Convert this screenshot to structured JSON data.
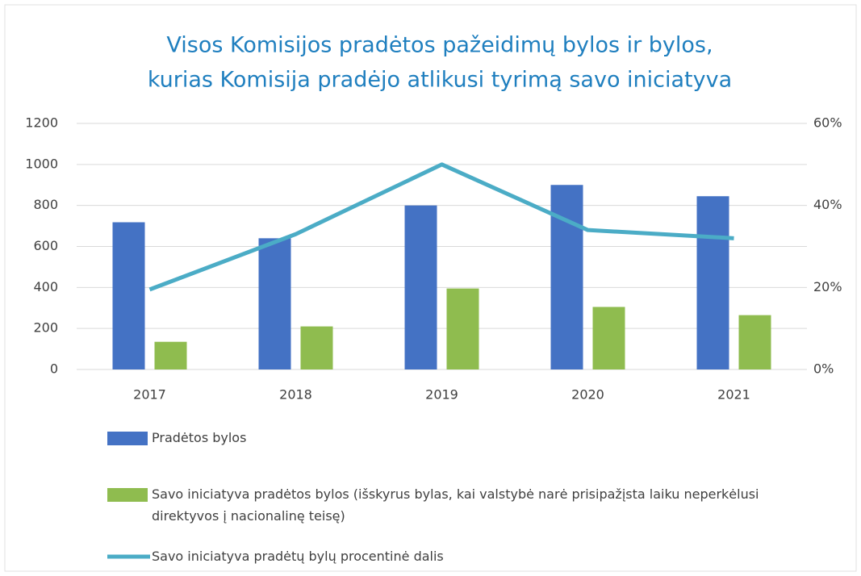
{
  "chart_data": {
    "type": "bar_line",
    "title": [
      "Visos Komisijos pradėtos pažeidimų bylos ir bylos,",
      "kurias Komisija pradėjo atlikusi tyrimą savo iniciatyva"
    ],
    "categories": [
      "2017",
      "2018",
      "2019",
      "2020",
      "2021"
    ],
    "series": [
      {
        "name": "Pradėtos bylos",
        "type": "bar",
        "color": "#4472c4",
        "values": [
          718,
          640,
          800,
          900,
          845
        ]
      },
      {
        "name": "Savo iniciatyva pradėtos bylos (išskyrus bylas, kai valstybė narė prisipažįsta laiku neperkėlusi direktyvos į nacionalinę teisę)",
        "type": "bar",
        "color": "#8fbc4f",
        "values": [
          135,
          210,
          395,
          305,
          265
        ]
      },
      {
        "name": "Savo iniciatyva pradėtų bylų procentinė dalis",
        "type": "line",
        "axis": "y2",
        "color": "#4bacc6",
        "values": [
          19.5,
          33,
          50,
          34,
          32
        ]
      }
    ],
    "ylim": [
      0,
      1200
    ],
    "yticks": [
      0,
      200,
      400,
      600,
      800,
      1000,
      1200
    ],
    "y2lim": [
      0,
      60
    ],
    "y2ticks": [
      {
        "value": 0,
        "label": "0%"
      },
      {
        "value": 20,
        "label": "20%"
      },
      {
        "value": 40,
        "label": "40%"
      },
      {
        "value": 60,
        "label": "60%"
      }
    ],
    "grid": true,
    "legend": "bottom"
  }
}
